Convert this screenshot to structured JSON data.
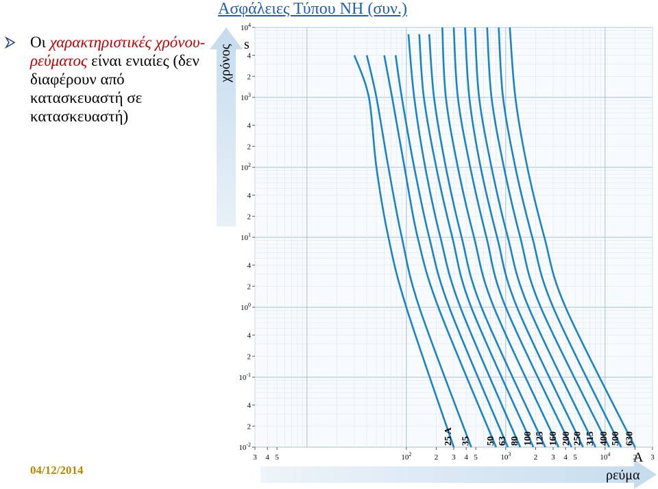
{
  "slide": {
    "title": "Ασφάλειες Τύπου ΝΗ  (συν.)",
    "bullet_lead": "Οι ",
    "bullet_highlight": "χαρακτηριστικές χρόνου-ρεύματος",
    "bullet_rest": " είναι ενιαίες (δεν διαφέρουν από κατασκευαστή σε κατασκευαστή)",
    "date": "04/12/2014"
  },
  "colors": {
    "curve": "#1a83c8",
    "title": "#1f5fae",
    "highlight": "#c00000",
    "date": "#b88a00",
    "arrow_band": "#d6e6f2"
  },
  "chart_data": {
    "type": "line",
    "x_scale": "log",
    "y_scale": "log",
    "xlabel": "ρεύμα",
    "ylabel": "χρόνος",
    "x_unit": "A",
    "y_unit": "s",
    "xlim": [
      3,
      30000
    ],
    "ylim": [
      0.01,
      10000
    ],
    "grid": true,
    "y_ticks": [
      {
        "v": 10000,
        "t": "10^4"
      },
      {
        "v": 4000,
        "t": "4"
      },
      {
        "v": 2000,
        "t": "2"
      },
      {
        "v": 1000,
        "t": "10^3"
      },
      {
        "v": 400,
        "t": "4"
      },
      {
        "v": 200,
        "t": "2"
      },
      {
        "v": 100,
        "t": "10^2"
      },
      {
        "v": 40,
        "t": "4"
      },
      {
        "v": 20,
        "t": "2"
      },
      {
        "v": 10,
        "t": "10^1"
      },
      {
        "v": 4,
        "t": "4"
      },
      {
        "v": 2,
        "t": "2"
      },
      {
        "v": 1,
        "t": "10^0"
      },
      {
        "v": 0.4,
        "t": "4"
      },
      {
        "v": 0.2,
        "t": "2"
      },
      {
        "v": 0.1,
        "t": "10^-1"
      },
      {
        "v": 0.04,
        "t": "4"
      },
      {
        "v": 0.02,
        "t": "2"
      },
      {
        "v": 0.01,
        "t": "10^-2"
      }
    ],
    "x_ticks": [
      {
        "v": 3,
        "t": "3"
      },
      {
        "v": 4,
        "t": "4"
      },
      {
        "v": 5,
        "t": "5"
      },
      {
        "v": 100,
        "t": "10^2"
      },
      {
        "v": 200,
        "t": "2"
      },
      {
        "v": 300,
        "t": "3"
      },
      {
        "v": 400,
        "t": "4"
      },
      {
        "v": 500,
        "t": "5"
      },
      {
        "v": 1000,
        "t": "10^3"
      },
      {
        "v": 2000,
        "t": "2"
      },
      {
        "v": 3000,
        "t": "3"
      },
      {
        "v": 4000,
        "t": "4"
      },
      {
        "v": 5000,
        "t": "5"
      },
      {
        "v": 10000,
        "t": "10^4"
      },
      {
        "v": 20000,
        "t": "2"
      },
      {
        "v": 30000,
        "t": "3"
      }
    ],
    "series": [
      {
        "name": "25 A",
        "points": [
          [
            30,
            4000
          ],
          [
            42,
            1000
          ],
          [
            50,
            100
          ],
          [
            66,
            10
          ],
          [
            100,
            1
          ],
          [
            300,
            0.01
          ]
        ]
      },
      {
        "name": "35",
        "points": [
          [
            40,
            4000
          ],
          [
            50,
            1000
          ],
          [
            66,
            100
          ],
          [
            90,
            10
          ],
          [
            135,
            1
          ],
          [
            450,
            0.01
          ]
        ]
      },
      {
        "name": "50",
        "points": [
          [
            60,
            4000
          ],
          [
            72,
            1000
          ],
          [
            96,
            100
          ],
          [
            130,
            10
          ],
          [
            210,
            1
          ],
          [
            800,
            0.01
          ]
        ]
      },
      {
        "name": "63",
        "points": [
          [
            78,
            4000
          ],
          [
            90,
            1000
          ],
          [
            120,
            100
          ],
          [
            170,
            10
          ],
          [
            270,
            1
          ],
          [
            1050,
            0.01
          ]
        ]
      },
      {
        "name": "80",
        "points": [
          [
            105,
            8000
          ],
          [
            120,
            1000
          ],
          [
            155,
            100
          ],
          [
            220,
            10
          ],
          [
            350,
            1
          ],
          [
            1400,
            0.01
          ]
        ]
      },
      {
        "name": "100",
        "points": [
          [
            135,
            8000
          ],
          [
            150,
            1000
          ],
          [
            200,
            100
          ],
          [
            290,
            10
          ],
          [
            450,
            1
          ],
          [
            1900,
            0.01
          ]
        ]
      },
      {
        "name": "125",
        "points": [
          [
            170,
            8000
          ],
          [
            190,
            1000
          ],
          [
            250,
            100
          ],
          [
            360,
            10
          ],
          [
            570,
            1
          ],
          [
            2500,
            0.01
          ]
        ]
      },
      {
        "name": "160",
        "points": [
          [
            230,
            10000
          ],
          [
            250,
            1000
          ],
          [
            330,
            100
          ],
          [
            480,
            10
          ],
          [
            760,
            1
          ],
          [
            3400,
            0.01
          ]
        ]
      },
      {
        "name": "200",
        "points": [
          [
            300,
            10000
          ],
          [
            330,
            1000
          ],
          [
            440,
            100
          ],
          [
            640,
            10
          ],
          [
            1000,
            1
          ],
          [
            4600,
            0.01
          ]
        ]
      },
      {
        "name": "250",
        "points": [
          [
            390,
            10000
          ],
          [
            430,
            1000
          ],
          [
            560,
            100
          ],
          [
            820,
            10
          ],
          [
            1300,
            1
          ],
          [
            6000,
            0.01
          ]
        ]
      },
      {
        "name": "315",
        "points": [
          [
            490,
            10000
          ],
          [
            540,
            1000
          ],
          [
            720,
            100
          ],
          [
            1050,
            10
          ],
          [
            1700,
            1
          ],
          [
            8000,
            0.01
          ]
        ]
      },
      {
        "name": "400",
        "points": [
          [
            650,
            10000
          ],
          [
            720,
            1000
          ],
          [
            960,
            100
          ],
          [
            1400,
            10
          ],
          [
            2250,
            1
          ],
          [
            11000,
            0.01
          ]
        ]
      },
      {
        "name": "500",
        "points": [
          [
            850,
            10000
          ],
          [
            940,
            1000
          ],
          [
            1250,
            100
          ],
          [
            1850,
            10
          ],
          [
            3000,
            1
          ],
          [
            14500,
            0.01
          ]
        ]
      },
      {
        "name": "630",
        "points": [
          [
            1100,
            10000
          ],
          [
            1250,
            1000
          ],
          [
            1650,
            100
          ],
          [
            2450,
            10
          ],
          [
            4000,
            1
          ],
          [
            20000,
            0.01
          ]
        ]
      }
    ]
  }
}
